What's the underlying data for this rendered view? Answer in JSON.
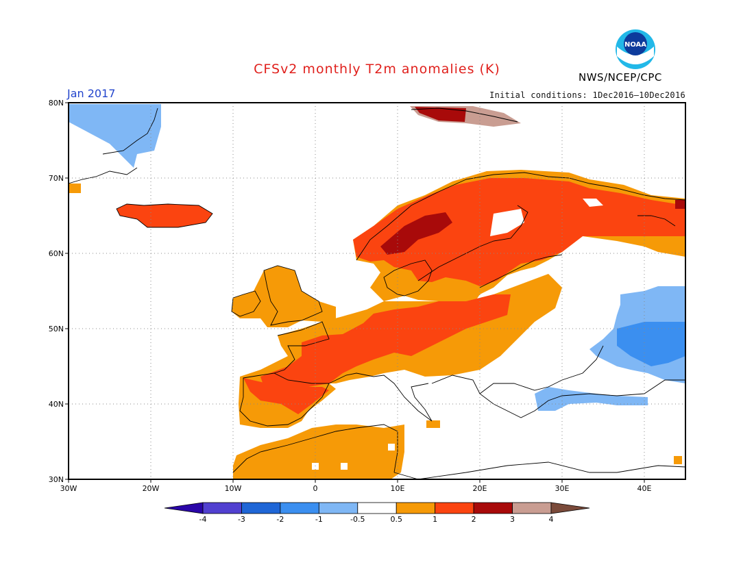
{
  "header": {
    "title": "CFSv2 monthly T2m anomalies (K)",
    "month": "Jan 2017",
    "initial_conditions": "Initial conditions: 1Dec2016–10Dec2016",
    "agency": "NWS/NCEP/CPC",
    "logo_text": "NOAA"
  },
  "map": {
    "lon_range": [
      -30,
      45
    ],
    "lat_range": [
      30,
      80
    ],
    "lon_ticks": [
      "30W",
      "20W",
      "10W",
      "0",
      "10E",
      "20E",
      "30E",
      "40E"
    ],
    "lat_ticks": [
      "30N",
      "40N",
      "50N",
      "60N",
      "70N",
      "80N"
    ],
    "grid": "dotted",
    "anomaly_regions": [
      {
        "name": "Greenland east coast",
        "category": "-1 to -0.5"
      },
      {
        "name": "Svalbard",
        "category": "2 to 4"
      },
      {
        "name": "Iceland",
        "category": "1 to 2"
      },
      {
        "name": "Scandinavia",
        "category": "1 to 3"
      },
      {
        "name": "Northwest Russia",
        "category": "1 to 2"
      },
      {
        "name": "France",
        "category": "1 to 2"
      },
      {
        "name": "Iberia",
        "category": "0.5 to 2"
      },
      {
        "name": "Central Europe",
        "category": "0.5 to 2"
      },
      {
        "name": "British Isles",
        "category": "0.5 to 1"
      },
      {
        "name": "North Africa",
        "category": "0.5 to 1"
      },
      {
        "name": "Southern Russia / Ukraine",
        "category": "-2 to -0.5"
      },
      {
        "name": "Turkey north",
        "category": "-1 to -0.5"
      }
    ]
  },
  "colorbar": {
    "labels": [
      "-4",
      "-3",
      "-2",
      "-1",
      "-0.5",
      "0.5",
      "1",
      "2",
      "3",
      "4"
    ],
    "colors": [
      "#2a06a8",
      "#5140d0",
      "#1f66d6",
      "#3b8ff0",
      "#7fb7f5",
      "#ffffff",
      "#f69a07",
      "#fb4410",
      "#a80a0a",
      "#c99d92",
      "#7a4a3a"
    ]
  }
}
